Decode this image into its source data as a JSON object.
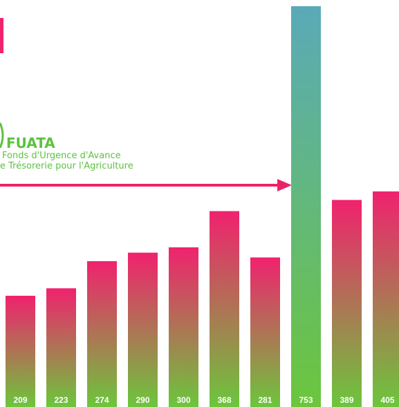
{
  "chart_data": {
    "type": "bar",
    "categories": [
      "",
      "",
      "",
      "",
      "",
      "",
      "",
      "",
      "",
      ""
    ],
    "values": [
      209,
      223,
      274,
      290,
      300,
      368,
      281,
      753,
      389,
      405
    ],
    "data_labels": [
      "209",
      "223",
      "274",
      "290",
      "300",
      "368",
      "281",
      "753",
      "389",
      "405"
    ],
    "highlight_index": 7,
    "colors": {
      "gradient_top": "#f0226e",
      "gradient_bottom": "#6cc63c",
      "highlight_top": "#5aaab8",
      "highlight_bottom": "#6cc63c",
      "arrow": "#ea2368",
      "annotation_text": "#5cc23f"
    },
    "annotation": {
      "title": "FUATA",
      "line1": "Fonds d'Urgence d'Avance",
      "line2": "e Trésorerie pour l'Agriculture"
    },
    "arrow_target_index": 7,
    "ylim": [
      0,
      753
    ],
    "grid": false,
    "legend": "none"
  }
}
